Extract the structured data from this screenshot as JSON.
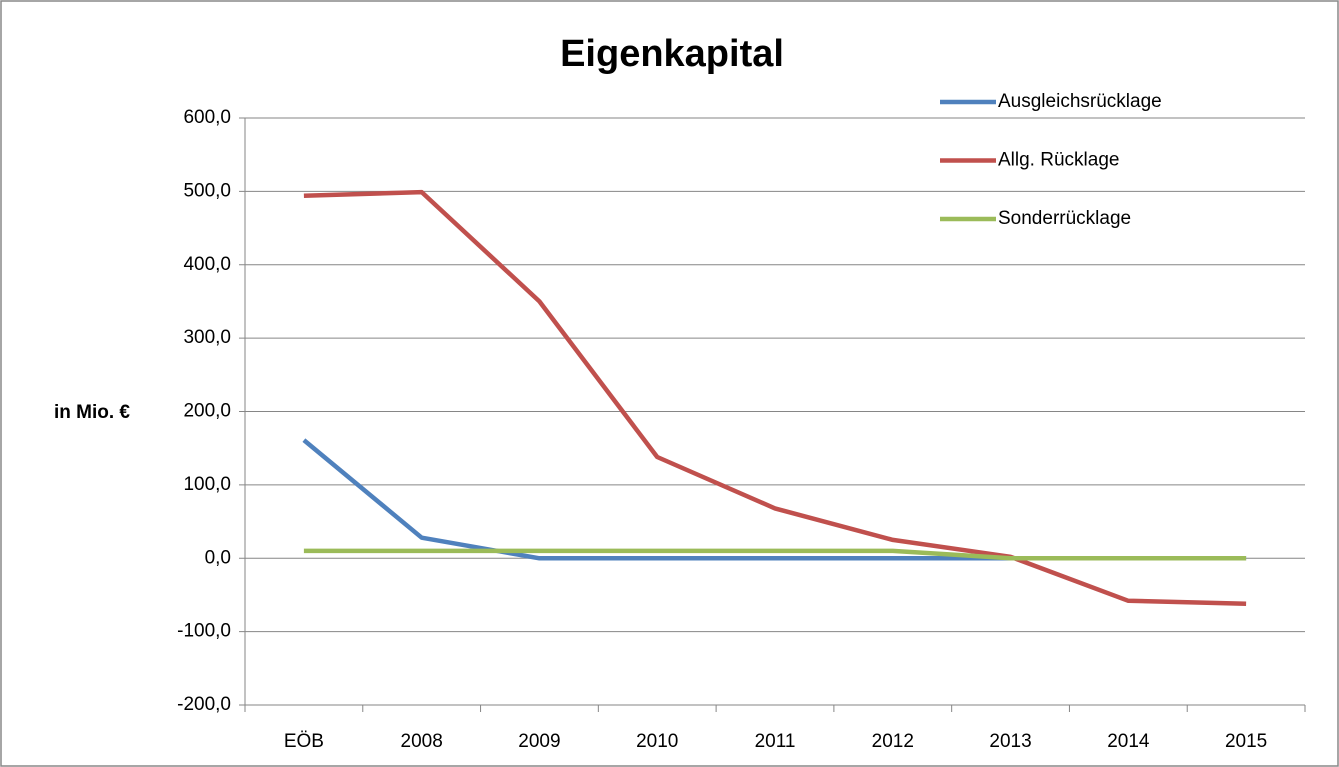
{
  "chart_data": {
    "type": "line",
    "title": "Eigenkapital",
    "y_label": "in Mio. €",
    "categories": [
      "EÖB",
      "2008",
      "2009",
      "2010",
      "2011",
      "2012",
      "2013",
      "2014",
      "2015"
    ],
    "series": [
      {
        "name": "Ausgleichsrücklage",
        "color": "#4f81bd",
        "values": [
          161,
          28,
          0,
          0,
          0,
          0,
          0,
          0,
          0
        ]
      },
      {
        "name": "Allg. Rücklage",
        "color": "#c0504d",
        "values": [
          494,
          499,
          350,
          138,
          68,
          25,
          2,
          -58,
          -62
        ]
      },
      {
        "name": "Sonderrücklage",
        "color": "#9bbb59",
        "values": [
          10,
          10,
          10,
          10,
          10,
          10,
          0,
          0,
          0
        ]
      }
    ],
    "ylim": [
      -200,
      600
    ],
    "yticks": [
      {
        "value": -200,
        "label": "-200,0"
      },
      {
        "value": -100,
        "label": "-100,0"
      },
      {
        "value": 0,
        "label": "0,0"
      },
      {
        "value": 100,
        "label": "100,0"
      },
      {
        "value": 200,
        "label": "200,0"
      },
      {
        "value": 300,
        "label": "300,0"
      },
      {
        "value": 400,
        "label": "400,0"
      },
      {
        "value": 500,
        "label": "500,0"
      },
      {
        "value": 600,
        "label": "600,0"
      }
    ],
    "grid": true,
    "legend": "top-right"
  }
}
